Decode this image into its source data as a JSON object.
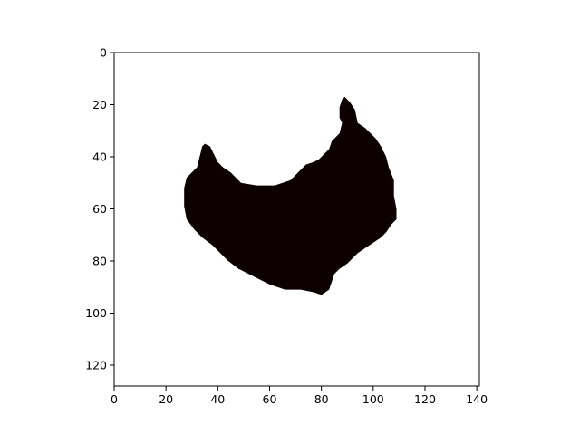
{
  "chart_data": {
    "type": "heatmap",
    "title": "",
    "xlabel": "",
    "ylabel": "",
    "xlim": [
      0,
      141
    ],
    "ylim": [
      128,
      0
    ],
    "y_inverted": true,
    "x_ticks": [
      0,
      20,
      40,
      60,
      80,
      100,
      120,
      140
    ],
    "y_ticks": [
      0,
      20,
      40,
      60,
      80,
      100,
      120
    ],
    "grid": false,
    "colors": {
      "background": "#ffffff",
      "mask": "#0d0000",
      "axes": "#000000"
    },
    "mask_outline": [
      [
        28,
        48
      ],
      [
        30,
        46
      ],
      [
        32,
        44
      ],
      [
        33,
        40
      ],
      [
        34,
        36
      ],
      [
        35,
        35
      ],
      [
        37,
        36
      ],
      [
        38,
        38
      ],
      [
        39,
        40
      ],
      [
        40,
        42
      ],
      [
        42,
        44
      ],
      [
        45,
        46
      ],
      [
        47,
        48
      ],
      [
        49,
        50
      ],
      [
        55,
        51
      ],
      [
        62,
        51
      ],
      [
        68,
        49
      ],
      [
        70,
        47
      ],
      [
        72,
        45
      ],
      [
        74,
        43
      ],
      [
        77,
        42
      ],
      [
        79,
        41
      ],
      [
        81,
        39
      ],
      [
        83,
        37
      ],
      [
        84,
        34
      ],
      [
        85,
        33
      ],
      [
        87,
        31
      ],
      [
        88,
        27
      ],
      [
        87,
        25
      ],
      [
        87,
        21
      ],
      [
        88,
        18
      ],
      [
        89,
        17
      ],
      [
        91,
        19
      ],
      [
        93,
        22
      ],
      [
        94,
        27
      ],
      [
        97,
        29
      ],
      [
        99,
        31
      ],
      [
        101,
        33
      ],
      [
        103,
        36
      ],
      [
        105,
        40
      ],
      [
        106,
        44
      ],
      [
        108,
        49
      ],
      [
        108,
        55
      ],
      [
        109,
        60
      ],
      [
        109,
        64
      ],
      [
        107,
        66
      ],
      [
        105,
        69
      ],
      [
        103,
        71
      ],
      [
        100,
        73
      ],
      [
        97,
        75
      ],
      [
        94,
        77
      ],
      [
        92,
        79
      ],
      [
        90,
        81
      ],
      [
        87,
        83
      ],
      [
        85,
        85
      ],
      [
        84,
        88
      ],
      [
        83,
        91
      ],
      [
        80,
        93
      ],
      [
        77,
        92
      ],
      [
        72,
        91
      ],
      [
        66,
        91
      ],
      [
        60,
        89
      ],
      [
        54,
        86
      ],
      [
        48,
        83
      ],
      [
        44,
        80
      ],
      [
        41,
        77
      ],
      [
        38,
        74
      ],
      [
        34,
        71
      ],
      [
        31,
        68
      ],
      [
        28,
        64
      ],
      [
        27,
        59
      ],
      [
        27,
        52
      ]
    ]
  }
}
